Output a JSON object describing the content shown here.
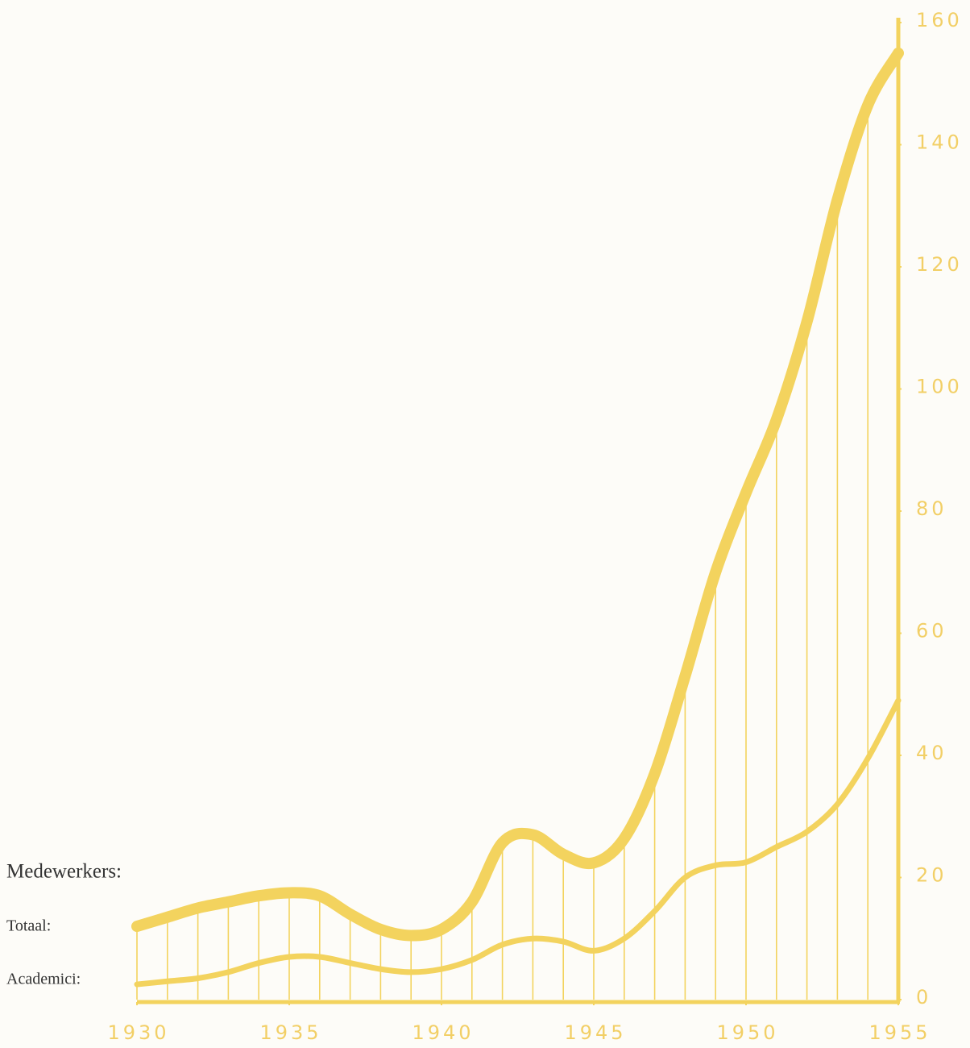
{
  "chart_data": {
    "type": "line",
    "legend_title": "Medewerkers:",
    "x": [
      1930,
      1931,
      1932,
      1933,
      1934,
      1935,
      1936,
      1937,
      1938,
      1939,
      1940,
      1941,
      1942,
      1943,
      1944,
      1945,
      1946,
      1947,
      1948,
      1949,
      1950,
      1951,
      1952,
      1953,
      1954,
      1955
    ],
    "series": [
      {
        "name": "Totaal:",
        "color": "#f3d35e",
        "width": 14,
        "values": [
          12,
          13.5,
          15,
          16,
          17,
          17.5,
          17,
          14,
          11.5,
          10.5,
          11.5,
          16,
          25.7,
          27,
          23.8,
          22.4,
          26.4,
          37,
          53,
          70,
          83,
          95,
          111,
          131,
          146.5,
          155
        ]
      },
      {
        "name": "Academici:",
        "color": "#f3d35e",
        "width": 7,
        "values": [
          2.5,
          3,
          3.5,
          4.5,
          6,
          7,
          7,
          6,
          5,
          4.5,
          5,
          6.5,
          9,
          10,
          9.5,
          8,
          10,
          14.5,
          20,
          22,
          22.5,
          25,
          27.5,
          32,
          39.5,
          49
        ]
      }
    ],
    "xlim": [
      1930,
      1955
    ],
    "xticks": [
      1930,
      1935,
      1940,
      1945,
      1950,
      1955
    ],
    "ylim": [
      0,
      160
    ],
    "yticks": [
      0,
      20,
      40,
      60,
      80,
      100,
      120,
      140,
      160
    ],
    "drop_lines": true
  }
}
